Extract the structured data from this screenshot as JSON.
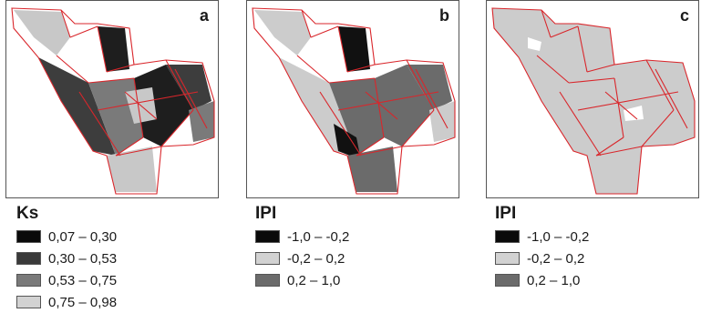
{
  "panels": [
    {
      "letter": "a",
      "fills": [
        "#1e1e1e",
        "#3d3d3d",
        "#7a7a7a",
        "#c8c8c8"
      ]
    },
    {
      "letter": "b",
      "fills": [
        "#111111",
        "#cccccc",
        "#6b6b6b"
      ]
    },
    {
      "letter": "c",
      "fills": [
        "#111111",
        "#cccccc",
        "#6b6b6b"
      ]
    }
  ],
  "legends": [
    {
      "title": "Ks",
      "items": [
        {
          "label": "0,07 – 0,30",
          "color": "#0a0a0a"
        },
        {
          "label": "0,30 – 0,53",
          "color": "#3a3a3a"
        },
        {
          "label": "0,53 – 0,75",
          "color": "#7a7a7a"
        },
        {
          "label": "0,75 – 0,98",
          "color": "#d2d2d2"
        }
      ]
    },
    {
      "title": "IPI",
      "items": [
        {
          "label": "-1,0 – -0,2",
          "color": "#0a0a0a"
        },
        {
          "label": "-0,2 – 0,2",
          "color": "#d2d2d2"
        },
        {
          "label": "0,2 – 1,0",
          "color": "#6b6b6b"
        }
      ]
    },
    {
      "title": "IPI",
      "items": [
        {
          "label": "-1,0 – -0,2",
          "color": "#0a0a0a"
        },
        {
          "label": "-0,2 – 0,2",
          "color": "#d2d2d2"
        },
        {
          "label": "0,2 – 1,0",
          "color": "#6b6b6b"
        }
      ]
    }
  ],
  "colors": {
    "boundary": "#d9262b",
    "frame": "#555555"
  }
}
